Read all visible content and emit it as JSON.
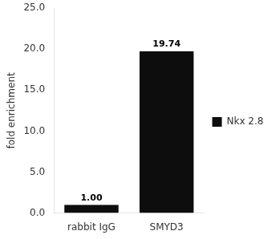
{
  "chart_data": {
    "type": "bar",
    "categories": [
      "rabbit IgG",
      "SMYD3"
    ],
    "series": [
      {
        "name": "Nkx 2.8",
        "color": "#0d0d0d",
        "values": [
          1.0,
          19.74
        ],
        "value_labels": [
          "1.00",
          "19.74"
        ]
      }
    ],
    "ylabel": "fold enrichment",
    "ylim": [
      0,
      25.0
    ],
    "yticks": [
      {
        "value": 0,
        "label": "0.0"
      },
      {
        "value": 5,
        "label": "5.0"
      },
      {
        "value": 10,
        "label": "10.0"
      },
      {
        "value": 15,
        "label": "15.0"
      },
      {
        "value": 20,
        "label": "20.0"
      },
      {
        "value": 25,
        "label": "25.0"
      }
    ],
    "data_labels": true,
    "grid": false,
    "legend": "right"
  }
}
